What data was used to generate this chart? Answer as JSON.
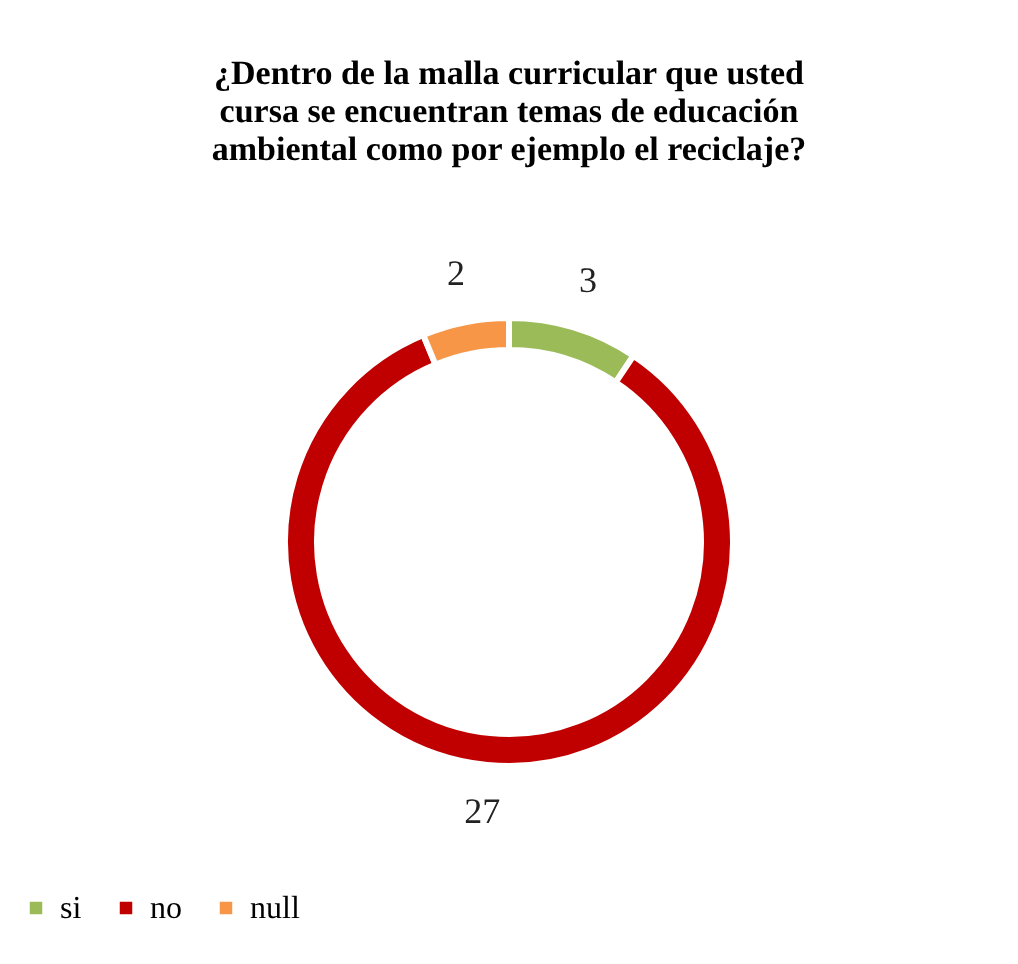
{
  "chart_data": {
    "type": "donut",
    "title": "¿Dentro de la malla curricular que usted cursa se encuentran temas de educación ambiental como por ejemplo el reciclaje?",
    "categories": [
      "si",
      "no",
      "null"
    ],
    "values": [
      3,
      27,
      2
    ],
    "colors": [
      "#9bbb59",
      "#c00000",
      "#f79646"
    ],
    "data_labels": true,
    "legend": "bottom"
  }
}
